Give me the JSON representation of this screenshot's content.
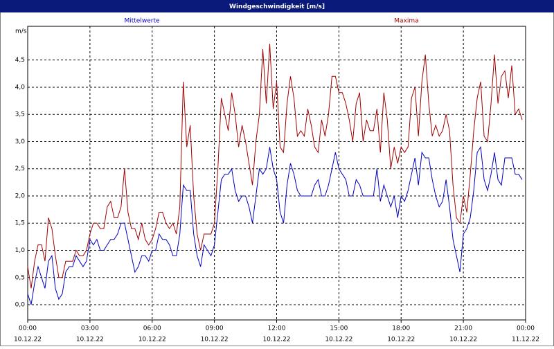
{
  "window_title": "Windgeschwindigkeit [m/s]",
  "chart_data": {
    "type": "line",
    "y_unit": "m/s",
    "x": [
      0,
      10,
      20,
      30,
      40,
      50,
      60,
      70,
      80,
      90,
      100,
      110,
      120,
      130,
      140,
      150,
      160,
      170,
      180,
      190,
      200,
      210,
      220,
      230,
      240,
      250,
      260,
      270,
      280,
      290,
      300,
      310,
      320,
      330,
      340,
      350,
      360,
      370,
      380,
      390,
      400,
      410,
      420,
      430,
      440,
      450,
      460,
      470,
      480,
      490,
      500,
      510,
      520,
      530,
      540,
      550,
      560,
      570,
      580,
      590,
      600,
      610,
      620,
      630,
      640,
      650,
      660,
      670,
      680,
      690,
      700,
      710,
      720,
      730,
      740,
      750,
      760,
      770,
      780,
      790,
      800,
      810,
      820,
      830,
      840,
      850,
      860,
      870,
      880,
      890,
      900,
      910,
      920,
      930,
      940,
      950,
      960,
      970,
      980,
      990,
      1000,
      1010,
      1020,
      1030,
      1040,
      1050,
      1060,
      1070,
      1080,
      1090,
      1100,
      1110,
      1120,
      1130,
      1140,
      1150,
      1160,
      1170,
      1180,
      1190,
      1200,
      1210,
      1220,
      1230,
      1240,
      1250,
      1260,
      1270,
      1280,
      1290,
      1300,
      1310,
      1320,
      1330,
      1340,
      1350,
      1360,
      1370,
      1380,
      1390,
      1400,
      1410,
      1420,
      1430
    ],
    "series": [
      {
        "name": "Mittelwerte",
        "color": "#0000c0",
        "values": [
          0.2,
          0.0,
          0.4,
          0.7,
          0.5,
          0.3,
          0.8,
          0.9,
          0.3,
          0.1,
          0.2,
          0.6,
          0.7,
          0.7,
          0.9,
          0.8,
          0.7,
          0.8,
          1.2,
          1.1,
          1.2,
          1.0,
          1.0,
          1.1,
          1.2,
          1.2,
          1.3,
          1.5,
          1.5,
          1.2,
          0.9,
          0.6,
          0.7,
          0.9,
          0.9,
          0.8,
          1.0,
          1.0,
          1.3,
          1.2,
          1.2,
          1.1,
          0.9,
          0.9,
          1.3,
          2.2,
          2.1,
          2.1,
          1.3,
          0.9,
          0.7,
          1.1,
          1.0,
          0.9,
          1.1,
          1.7,
          2.3,
          2.4,
          2.4,
          2.5,
          2.1,
          1.9,
          2.0,
          2.0,
          1.8,
          1.5,
          2.0,
          2.5,
          2.4,
          2.5,
          2.9,
          2.5,
          2.3,
          1.7,
          1.5,
          2.2,
          2.6,
          2.4,
          2.1,
          2.0,
          2.0,
          2.0,
          2.0,
          2.2,
          2.3,
          2.0,
          2.0,
          2.2,
          2.5,
          2.8,
          2.5,
          2.4,
          2.3,
          2.0,
          2.0,
          2.3,
          2.2,
          2.0,
          2.0,
          2.0,
          2.0,
          2.5,
          1.9,
          2.2,
          2.0,
          1.8,
          2.0,
          1.6,
          2.0,
          1.9,
          2.1,
          2.4,
          2.7,
          2.2,
          2.8,
          2.7,
          2.7,
          2.3,
          2.0,
          1.8,
          1.9,
          2.3,
          1.8,
          1.2,
          0.9,
          0.6,
          1.3,
          1.4,
          1.6,
          2.1,
          2.8,
          2.9,
          2.3,
          2.1,
          2.4,
          2.8,
          2.3,
          2.2,
          2.7,
          2.7,
          2.7,
          2.4,
          2.4,
          2.3
        ]
      },
      {
        "name": "Maxima",
        "color": "#a00000",
        "values": [
          0.7,
          0.3,
          0.8,
          1.1,
          1.1,
          0.8,
          1.6,
          1.4,
          0.9,
          0.5,
          0.5,
          0.8,
          0.8,
          0.8,
          1.0,
          0.9,
          0.9,
          1.0,
          1.3,
          1.5,
          1.5,
          1.4,
          1.4,
          1.8,
          1.9,
          1.6,
          1.6,
          1.8,
          2.5,
          1.7,
          1.4,
          1.4,
          1.2,
          1.5,
          1.2,
          1.1,
          1.2,
          1.4,
          1.7,
          1.7,
          1.5,
          1.4,
          1.5,
          1.3,
          1.8,
          4.1,
          2.9,
          3.3,
          2.0,
          1.3,
          1.0,
          1.3,
          1.3,
          1.3,
          1.5,
          2.5,
          3.8,
          3.5,
          3.2,
          3.9,
          3.5,
          2.9,
          3.3,
          3.0,
          2.6,
          2.2,
          3.0,
          3.5,
          4.7,
          3.7,
          4.8,
          3.6,
          4.1,
          2.9,
          2.8,
          3.7,
          4.2,
          3.8,
          3.1,
          3.2,
          3.1,
          3.6,
          3.3,
          2.9,
          2.8,
          3.4,
          3.1,
          3.5,
          4.2,
          4.2,
          3.9,
          3.9,
          3.7,
          3.4,
          3.0,
          3.7,
          3.9,
          3.0,
          3.4,
          3.2,
          3.2,
          3.6,
          2.8,
          3.9,
          3.4,
          2.5,
          2.9,
          2.6,
          2.9,
          2.8,
          2.9,
          3.8,
          4.0,
          3.1,
          4.1,
          4.6,
          3.7,
          3.1,
          3.3,
          3.1,
          3.2,
          3.5,
          3.2,
          2.2,
          1.6,
          1.5,
          2.0,
          1.7,
          2.4,
          3.2,
          3.8,
          4.1,
          3.1,
          3.0,
          3.7,
          4.6,
          3.7,
          4.2,
          4.3,
          3.8,
          4.4,
          3.5,
          3.6,
          3.4
        ]
      }
    ],
    "xlim": [
      0,
      1440
    ],
    "xticks": [
      {
        "value": 0,
        "label": "00:00",
        "date": "10.12.22"
      },
      {
        "value": 180,
        "label": "03:00",
        "date": "10.12.22"
      },
      {
        "value": 360,
        "label": "06:00",
        "date": "10.12.22"
      },
      {
        "value": 540,
        "label": "09:00",
        "date": "10.12.22"
      },
      {
        "value": 720,
        "label": "12:00",
        "date": "10.12.22"
      },
      {
        "value": 900,
        "label": "15:00",
        "date": "10.12.22"
      },
      {
        "value": 1080,
        "label": "18:00",
        "date": "10.12.22"
      },
      {
        "value": 1260,
        "label": "21:00",
        "date": "10.12.22"
      },
      {
        "value": 1440,
        "label": "00:00",
        "date": "11.12.22"
      }
    ],
    "ylim": [
      -0.28,
      5.12
    ],
    "yticks": [
      {
        "value": 0,
        "label": "0,0"
      },
      {
        "value": 0.5,
        "label": "0,5"
      },
      {
        "value": 1,
        "label": "1,0"
      },
      {
        "value": 1.5,
        "label": "1,5"
      },
      {
        "value": 2,
        "label": "2,0"
      },
      {
        "value": 2.5,
        "label": "2,5"
      },
      {
        "value": 3,
        "label": "3,0"
      },
      {
        "value": 3.5,
        "label": "3,5"
      },
      {
        "value": 4,
        "label": "4,0"
      },
      {
        "value": 4.5,
        "label": "4,5"
      }
    ],
    "grid": true
  }
}
